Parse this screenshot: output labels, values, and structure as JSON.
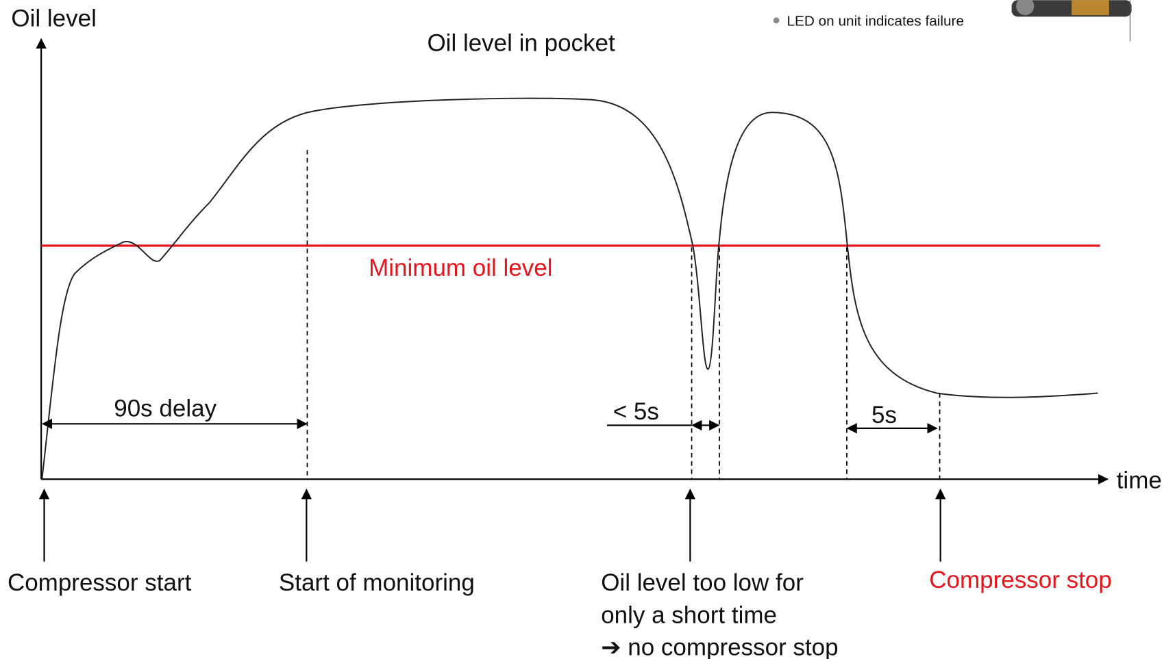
{
  "title": "Oil level in pocket",
  "axes": {
    "y_label": "Oil level",
    "x_label": "time"
  },
  "threshold_label": "Minimum oil level",
  "intervals": [
    {
      "label": "90s delay"
    },
    {
      "label": "< 5s"
    },
    {
      "label": "5s"
    }
  ],
  "events": [
    {
      "lines": [
        "Compressor start"
      ]
    },
    {
      "lines": [
        "Start of monitoring"
      ]
    },
    {
      "lines": [
        "Oil level too low for",
        "only a short time",
        "➔ no compressor stop"
      ]
    },
    {
      "lines": [
        "Compressor stop"
      ]
    }
  ],
  "note": "LED on unit indicates failure"
}
